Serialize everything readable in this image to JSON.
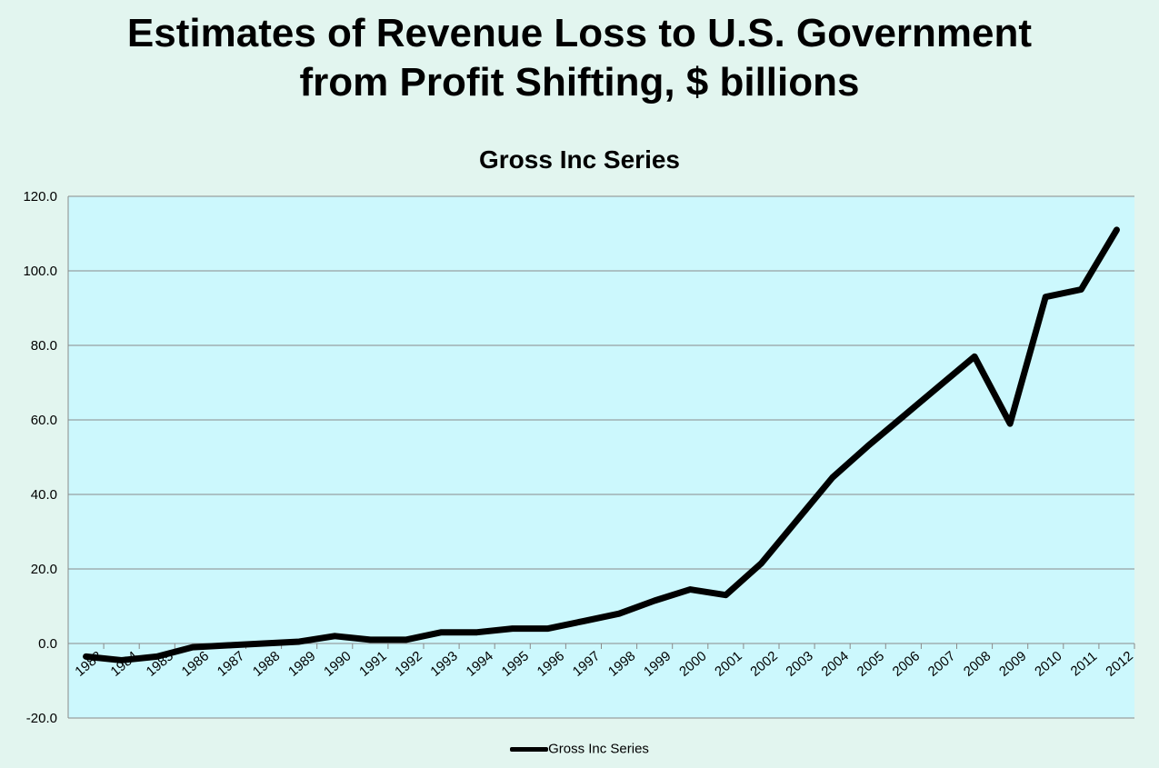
{
  "slide": {
    "title_line1": "Estimates of Revenue Loss to U.S. Government",
    "title_line2": "from Profit Shifting, $ billions"
  },
  "chart_data": {
    "type": "line",
    "title": "Gross Inc Series",
    "xlabel": "",
    "ylabel": "",
    "categories": [
      "1983",
      "1984",
      "1985",
      "1986",
      "1987",
      "1988",
      "1989",
      "1990",
      "1991",
      "1992",
      "1993",
      "1994",
      "1995",
      "1996",
      "1997",
      "1998",
      "1999",
      "2000",
      "2001",
      "2002",
      "2003",
      "2004",
      "2005",
      "2006",
      "2007",
      "2008",
      "2009",
      "2010",
      "2011",
      "2012"
    ],
    "series": [
      {
        "name": "Gross Inc Series",
        "color": "#000000",
        "values": [
          -3.5,
          -4.5,
          -3.5,
          -1,
          -0.5,
          0,
          0.5,
          2,
          1,
          1,
          3,
          3,
          4,
          4,
          6,
          8,
          11.5,
          14.5,
          13,
          21.5,
          33,
          44.5,
          53,
          61,
          69,
          77,
          59,
          93,
          95,
          111
        ]
      }
    ],
    "ylim": [
      -20,
      120
    ],
    "yticks": [
      -20,
      0,
      20,
      40,
      60,
      80,
      100,
      120
    ],
    "ytick_labels": [
      "-20.0",
      "0.0",
      "20.0",
      "40.0",
      "60.0",
      "80.0",
      "100.0",
      "120.0"
    ],
    "grid": true,
    "legend_position": "bottom",
    "plot_background": "#ccf8fd"
  }
}
